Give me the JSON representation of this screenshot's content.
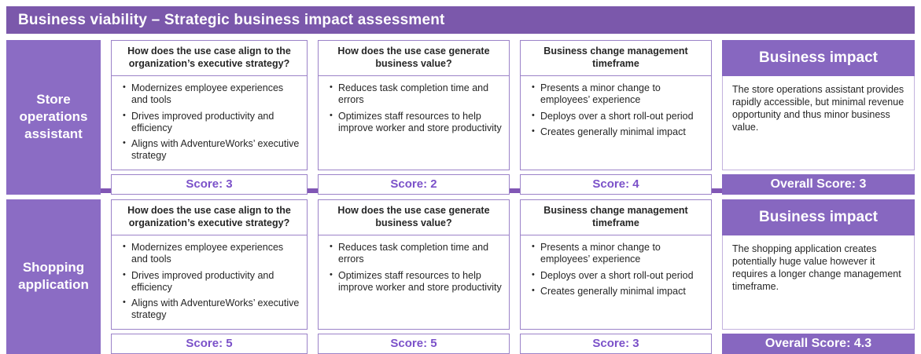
{
  "title": "Business viability – Strategic business impact assessment",
  "colors": {
    "title_banner": "#7b58ab",
    "row_label": "#8b6cc4",
    "impact_purple": "#8767c0",
    "divider": "#8157b5",
    "score_text": "#7b51c9",
    "card_border": "#9b82c8"
  },
  "rows": [
    {
      "label": "Store operations assistant",
      "cards": [
        {
          "question": "How does the use case align to the organization’s executive strategy?",
          "bullets": [
            "Modernizes employee experiences and tools",
            "Drives improved productivity and efficiency",
            "Aligns with AdventureWorks’ executive strategy"
          ],
          "score": "Score: 3"
        },
        {
          "question": "How does the use case generate business value?",
          "bullets": [
            "Reduces task completion time and errors",
            "Optimizes staff resources to help improve worker and store productivity"
          ],
          "score": "Score: 2"
        },
        {
          "question": "Business change management timeframe",
          "bullets": [
            "Presents a minor change to employees’ experience",
            "Deploys over a short roll-out period",
            "Creates generally minimal impact"
          ],
          "score": "Score: 4"
        }
      ],
      "impact": {
        "title": "Business impact",
        "text": "The store operations assistant provides rapidly accessible, but minimal revenue opportunity and thus minor business value.",
        "overall": "Overall Score: 3"
      }
    },
    {
      "label": "Shopping application",
      "cards": [
        {
          "question": "How does the use case align to the organization’s executive strategy?",
          "bullets": [
            "Modernizes employee experiences and tools",
            "Drives improved productivity and efficiency",
            "Aligns with AdventureWorks’ executive strategy"
          ],
          "score": "Score: 5"
        },
        {
          "question": "How does the use case generate business value?",
          "bullets": [
            "Reduces task completion time and errors",
            "Optimizes staff resources to help improve worker and store productivity"
          ],
          "score": "Score: 5"
        },
        {
          "question": "Business change management timeframe",
          "bullets": [
            "Presents a minor change to employees’ experience",
            "Deploys over a short roll-out period",
            "Creates generally minimal impact"
          ],
          "score": "Score: 3"
        }
      ],
      "impact": {
        "title": "Business impact",
        "text": "The shopping application creates potentially huge value however it requires a longer change management timeframe.",
        "overall": "Overall Score: 4.3"
      }
    }
  ]
}
